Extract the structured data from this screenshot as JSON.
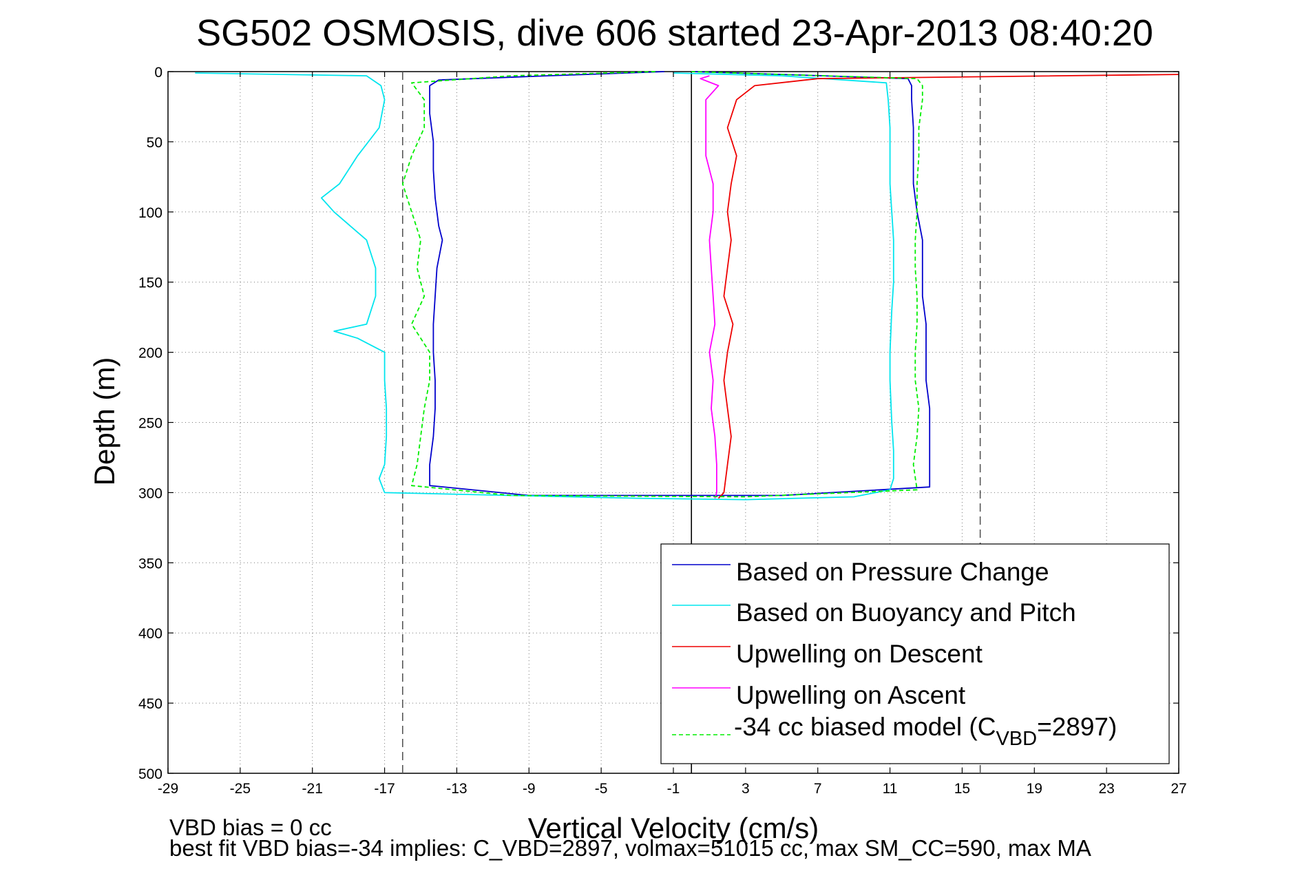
{
  "chart_data": {
    "type": "line",
    "title": "SG502 OSMOSIS, dive 606 started 23-Apr-2013 08:40:20",
    "xlabel": "Vertical Velocity (cm/s)",
    "ylabel": "Depth (m)",
    "xlim": [
      -29,
      27
    ],
    "ylim": [
      0,
      500
    ],
    "y_reversed": true,
    "grid": true,
    "legend_position": "bottom-right",
    "x_ticks": [
      "-29",
      "-25",
      "-21",
      "-17",
      "-13",
      "-9",
      "-5",
      "-1",
      "3",
      "7",
      "11",
      "15",
      "19",
      "23",
      "27"
    ],
    "y_ticks": [
      "0",
      "50",
      "100",
      "150",
      "200",
      "250",
      "300",
      "350",
      "400",
      "450",
      "500"
    ],
    "reference_lines": [
      {
        "x": -16,
        "style": "dashed",
        "color": "#555555"
      },
      {
        "x": 0,
        "style": "solid",
        "color": "#000000"
      },
      {
        "x": 16,
        "style": "dashed",
        "color": "#555555"
      }
    ],
    "series": [
      {
        "name": "Based on Pressure Change",
        "color": "#0000cc",
        "style": "solid",
        "depth": [
          0,
          3,
          6,
          10,
          20,
          30,
          50,
          70,
          90,
          110,
          120,
          140,
          160,
          180,
          200,
          220,
          240,
          260,
          280,
          295,
          302,
          302,
          296,
          280,
          260,
          240,
          220,
          200,
          180,
          160,
          140,
          120,
          100,
          80,
          60,
          40,
          20,
          10,
          5,
          2,
          0
        ],
        "x": [
          -1.5,
          -8,
          -14,
          -14.5,
          -14.5,
          -14.5,
          -14.3,
          -14.3,
          -14.2,
          -14.0,
          -13.8,
          -14.1,
          -14.2,
          -14.3,
          -14.3,
          -14.2,
          -14.2,
          -14.3,
          -14.5,
          -14.5,
          -9,
          5,
          13.2,
          13.2,
          13.2,
          13.2,
          13.0,
          13.0,
          13.0,
          12.8,
          12.8,
          12.8,
          12.5,
          12.3,
          12.3,
          12.3,
          12.2,
          12.2,
          12,
          5,
          0
        ]
      },
      {
        "name": "Based on Buoyancy and Pitch",
        "color": "#00e5ee",
        "style": "solid",
        "depth": [
          1,
          3,
          10,
          20,
          40,
          60,
          80,
          90,
          100,
          120,
          140,
          160,
          180,
          185,
          190,
          200,
          220,
          240,
          260,
          280,
          290,
          300,
          302,
          304,
          305,
          303,
          298,
          290,
          270,
          250,
          220,
          200,
          170,
          150,
          120,
          100,
          80,
          60,
          40,
          20,
          8,
          3,
          1
        ],
        "x": [
          -27.5,
          -18,
          -17.2,
          -17.0,
          -17.3,
          -18.5,
          -19.5,
          -20.5,
          -19.8,
          -18.0,
          -17.5,
          -17.5,
          -18.0,
          -19.8,
          -18.5,
          -17.0,
          -17.0,
          -16.9,
          -16.9,
          -17.0,
          -17.3,
          -17.0,
          -10,
          -3,
          3,
          9,
          11.0,
          11.2,
          11.2,
          11.1,
          11.0,
          11.0,
          11.1,
          11.2,
          11.2,
          11.1,
          11.0,
          11.0,
          11.0,
          10.9,
          10.8,
          5,
          -1
        ]
      },
      {
        "name": "Upwelling on Descent",
        "color": "#ee0000",
        "style": "solid",
        "depth": [
          2,
          5,
          10,
          20,
          40,
          60,
          80,
          100,
          120,
          140,
          160,
          180,
          200,
          220,
          240,
          260,
          280,
          300,
          304
        ],
        "x": [
          27,
          7,
          3.5,
          2.5,
          2.0,
          2.5,
          2.2,
          2.0,
          2.2,
          2.0,
          1.8,
          2.3,
          2.0,
          1.8,
          2.0,
          2.2,
          2.0,
          1.8,
          1.5
        ]
      },
      {
        "name": "Upwelling on Ascent",
        "color": "#ff00ff",
        "style": "solid",
        "depth": [
          3,
          5,
          10,
          20,
          40,
          60,
          80,
          100,
          120,
          140,
          160,
          180,
          200,
          220,
          240,
          260,
          280,
          300,
          304
        ],
        "x": [
          1.0,
          0.5,
          1.5,
          0.8,
          0.8,
          0.8,
          1.2,
          1.2,
          1.0,
          1.1,
          1.2,
          1.3,
          1.0,
          1.2,
          1.1,
          1.3,
          1.4,
          1.4,
          1.3
        ]
      },
      {
        "name": "-34 cc biased model (C_VBD=2897)",
        "color": "#00ee00",
        "style": "dashed",
        "depth": [
          0,
          3,
          8,
          20,
          40,
          60,
          80,
          100,
          120,
          140,
          160,
          180,
          200,
          220,
          240,
          260,
          280,
          295,
          302,
          303,
          298,
          280,
          260,
          240,
          220,
          200,
          180,
          160,
          140,
          120,
          100,
          80,
          60,
          40,
          20,
          10,
          5,
          2,
          0
        ],
        "x": [
          -2,
          -10,
          -15.5,
          -14.8,
          -14.8,
          -15.5,
          -16.0,
          -15.5,
          -15.0,
          -15.2,
          -14.8,
          -15.5,
          -14.5,
          -14.5,
          -14.8,
          -15.0,
          -15.2,
          -15.5,
          -10,
          3,
          12.5,
          12.3,
          12.5,
          12.6,
          12.4,
          12.4,
          12.5,
          12.5,
          12.4,
          12.4,
          12.5,
          12.5,
          12.6,
          12.6,
          12.8,
          12.8,
          12.5,
          5,
          0
        ]
      }
    ],
    "legend": {
      "entries": [
        "Based on Pressure Change",
        "Based on Buoyancy and Pitch",
        "Upwelling on Descent",
        "Upwelling on Ascent"
      ],
      "last_entry_prefix": "-34 cc biased model (C",
      "last_entry_sub": "VBD",
      "last_entry_suffix": "=2897)"
    },
    "annotations": [
      "VBD bias = 0 cc",
      "best fit VBD bias=-34 implies: C_VBD=2897, volmax=51015 cc, max SM_CC=590, max MA"
    ]
  }
}
